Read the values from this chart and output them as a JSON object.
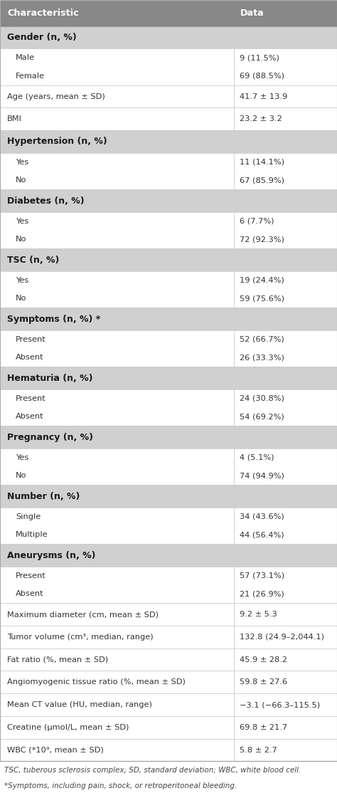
{
  "header": [
    "Characteristic",
    "Data"
  ],
  "header_bg": "#888888",
  "header_text_color": "#ffffff",
  "section_bg": "#d0d0d0",
  "data_row_bg": "#ffffff",
  "border_color": "#cccccc",
  "col_split": 0.695,
  "figsize": [
    4.74,
    11.28
  ],
  "dpi": 100,
  "font_size": 8.2,
  "header_font_size": 9.2,
  "section_font_size": 9.0,
  "footnote_font_size": 7.5,
  "blocks": [
    {
      "type": "section",
      "char": "Gender (n, %)",
      "data": ""
    },
    {
      "type": "subgroup",
      "rows": [
        {
          "char": "Male",
          "data": "9 (11.5%)"
        },
        {
          "char": "Female",
          "data": "69 (88.5%)"
        }
      ]
    },
    {
      "type": "plain",
      "char": "Age (years, mean ± SD)",
      "data": "41.7 ± 13.9"
    },
    {
      "type": "plain",
      "char": "BMI",
      "data": "23.2 ± 3.2"
    },
    {
      "type": "section",
      "char": "Hypertension (n, %)",
      "data": ""
    },
    {
      "type": "subgroup",
      "rows": [
        {
          "char": "Yes",
          "data": "11 (14.1%)"
        },
        {
          "char": "No",
          "data": "67 (85.9%)"
        }
      ]
    },
    {
      "type": "section",
      "char": "Diabetes (n, %)",
      "data": ""
    },
    {
      "type": "subgroup",
      "rows": [
        {
          "char": "Yes",
          "data": "6 (7.7%)"
        },
        {
          "char": "No",
          "data": "72 (92.3%)"
        }
      ]
    },
    {
      "type": "section",
      "char": "TSC (n, %)",
      "data": ""
    },
    {
      "type": "subgroup",
      "rows": [
        {
          "char": "Yes",
          "data": "19 (24.4%)"
        },
        {
          "char": "No",
          "data": "59 (75.6%)"
        }
      ]
    },
    {
      "type": "section",
      "char": "Symptoms (n, %) *",
      "data": ""
    },
    {
      "type": "subgroup",
      "rows": [
        {
          "char": "Present",
          "data": "52 (66.7%)"
        },
        {
          "char": "Absent",
          "data": "26 (33.3%)"
        }
      ]
    },
    {
      "type": "section",
      "char": "Hematuria (n, %)",
      "data": ""
    },
    {
      "type": "subgroup",
      "rows": [
        {
          "char": "Present",
          "data": "24 (30.8%)"
        },
        {
          "char": "Absent",
          "data": "54 (69.2%)"
        }
      ]
    },
    {
      "type": "section",
      "char": "Pregnancy (n, %)",
      "data": ""
    },
    {
      "type": "subgroup",
      "rows": [
        {
          "char": "Yes",
          "data": "4 (5.1%)"
        },
        {
          "char": "No",
          "data": "74 (94.9%)"
        }
      ]
    },
    {
      "type": "section",
      "char": "Number (n, %)",
      "data": ""
    },
    {
      "type": "subgroup",
      "rows": [
        {
          "char": "Single",
          "data": "34 (43.6%)"
        },
        {
          "char": "Multiple",
          "data": "44 (56.4%)"
        }
      ]
    },
    {
      "type": "section",
      "char": "Aneurysms (n, %)",
      "data": ""
    },
    {
      "type": "subgroup",
      "rows": [
        {
          "char": "Present",
          "data": "57 (73.1%)"
        },
        {
          "char": "Absent",
          "data": "21 (26.9%)"
        }
      ]
    },
    {
      "type": "plain",
      "char": "Maximum diameter (cm, mean ± SD)",
      "data": "9.2 ± 5.3"
    },
    {
      "type": "plain",
      "char": "Tumor volume (cm³, median, range)",
      "data": "132.8 (24.9–2,044.1)"
    },
    {
      "type": "plain",
      "char": "Fat ratio (%, mean ± SD)",
      "data": "45.9 ± 28.2"
    },
    {
      "type": "plain",
      "char": "Angiomyogenic tissue ratio (%, mean ± SD)",
      "data": "59.8 ± 27.6"
    },
    {
      "type": "plain",
      "char": "Mean CT value (HU, median, range)",
      "data": "−3.1 (−66.3–115.5)"
    },
    {
      "type": "plain",
      "char": "Creatine (μmol/L, mean ± SD)",
      "data": "69.8 ± 21.7"
    },
    {
      "type": "plain",
      "char": "WBC (*10⁹, mean ± SD)",
      "data": "5.8 ± 2.7"
    }
  ],
  "footnotes": [
    "TSC, tuberous sclerosis complex; SD, standard deviation; WBC, white blood cell.",
    "*Symptoms, including pain, shock, or retroperitoneal bleeding."
  ]
}
